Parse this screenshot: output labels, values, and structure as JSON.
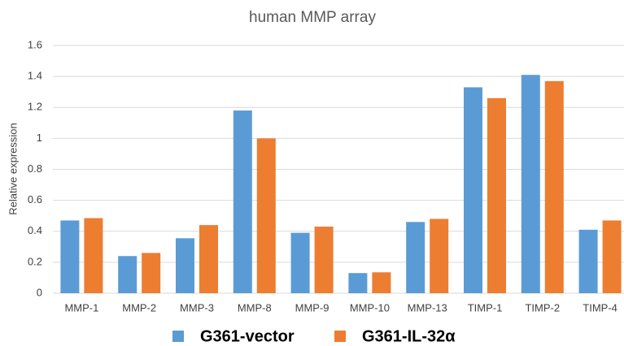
{
  "chart_data": {
    "type": "bar",
    "title": "human MMP array",
    "y_label": "Relative expression",
    "categories": [
      "MMP-1",
      "MMP-2",
      "MMP-3",
      "MMP-8",
      "MMP-9",
      "MMP-10",
      "MMP-13",
      "TIMP-1",
      "TIMP-2",
      "TIMP-4"
    ],
    "series": [
      {
        "name": "G361-vector",
        "color": "#5b9bd5",
        "values": [
          0.47,
          0.24,
          0.355,
          1.18,
          0.39,
          0.13,
          0.46,
          1.33,
          1.41,
          0.41
        ]
      },
      {
        "name": "G361-IL-32α",
        "color": "#ed7d31",
        "values": [
          0.485,
          0.26,
          0.44,
          1.0,
          0.43,
          0.135,
          0.48,
          1.26,
          1.37,
          0.47
        ]
      }
    ],
    "ylim": [
      0,
      1.6
    ],
    "yticks": [
      0,
      0.2,
      0.4,
      0.6,
      0.8,
      1,
      1.2,
      1.4,
      1.6
    ],
    "grid": true,
    "legend": "bottom"
  }
}
